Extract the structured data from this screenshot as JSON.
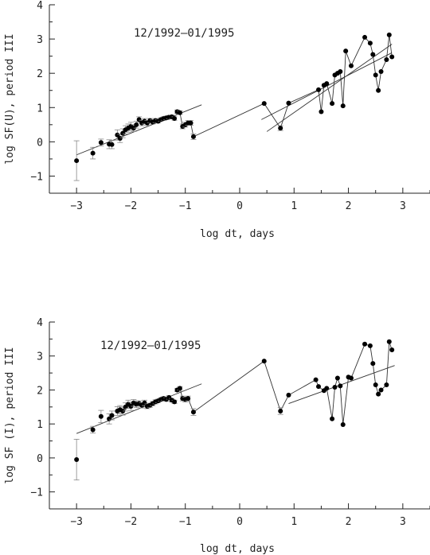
{
  "chart_data": [
    {
      "type": "scatter",
      "annotation": "12/1992–01/1995",
      "xlabel": "log dt, days",
      "ylabel": "log SF(U), period III",
      "xlim": [
        -3.5,
        3.5
      ],
      "ylim": [
        -1.5,
        4.0
      ],
      "xticks": [
        -3,
        -2,
        -1,
        0,
        1,
        2,
        3
      ],
      "yticks": [
        -1,
        0,
        1,
        2,
        3,
        4
      ],
      "points": [
        [
          -3.0,
          -0.55,
          0.58
        ],
        [
          -2.7,
          -0.33,
          0.17
        ],
        [
          -2.55,
          -0.02,
          0.1
        ],
        [
          -2.4,
          -0.07,
          0.13
        ],
        [
          -2.35,
          -0.08,
          0.12
        ],
        [
          -2.25,
          0.2,
          0.15
        ],
        [
          -2.2,
          0.1,
          0.12
        ],
        [
          -2.15,
          0.25,
          0.13
        ],
        [
          -2.1,
          0.35,
          0.12
        ],
        [
          -2.05,
          0.4,
          0.12
        ],
        [
          -2.0,
          0.45,
          0.12
        ],
        [
          -1.95,
          0.4,
          0.1
        ],
        [
          -1.9,
          0.5,
          0.1
        ],
        [
          -1.85,
          0.65,
          0.08
        ],
        [
          -1.8,
          0.55,
          0.08
        ],
        [
          -1.75,
          0.6,
          0.08
        ],
        [
          -1.7,
          0.55,
          0.07
        ],
        [
          -1.65,
          0.62,
          0.06
        ],
        [
          -1.6,
          0.58,
          0.06
        ],
        [
          -1.55,
          0.62,
          0.06
        ],
        [
          -1.5,
          0.6,
          0.05
        ],
        [
          -1.45,
          0.65,
          0.05
        ],
        [
          -1.4,
          0.68,
          0.05
        ],
        [
          -1.35,
          0.7,
          0.05
        ],
        [
          -1.3,
          0.72,
          0.05
        ],
        [
          -1.25,
          0.73,
          0.05
        ],
        [
          -1.2,
          0.68,
          0.05
        ],
        [
          -1.15,
          0.88,
          0.05
        ],
        [
          -1.1,
          0.85,
          0.05
        ],
        [
          -1.05,
          0.45,
          0.07
        ],
        [
          -1.0,
          0.5,
          0.07
        ],
        [
          -0.95,
          0.55,
          0.07
        ],
        [
          -0.9,
          0.55,
          0.07
        ],
        [
          -0.85,
          0.15,
          0.08
        ],
        [
          0.45,
          1.12,
          0
        ],
        [
          0.75,
          0.4,
          0.07
        ],
        [
          0.9,
          1.13,
          0
        ],
        [
          1.45,
          1.52,
          0
        ],
        [
          1.5,
          0.88,
          0
        ],
        [
          1.55,
          1.65,
          0
        ],
        [
          1.6,
          1.7,
          0
        ],
        [
          1.7,
          1.12,
          0
        ],
        [
          1.75,
          1.95,
          0
        ],
        [
          1.8,
          2.0,
          0
        ],
        [
          1.85,
          2.05,
          0
        ],
        [
          1.9,
          1.05,
          0
        ],
        [
          1.95,
          2.65,
          0
        ],
        [
          2.05,
          2.22,
          0
        ],
        [
          2.3,
          3.05,
          0
        ],
        [
          2.4,
          2.88,
          0
        ],
        [
          2.45,
          2.55,
          0
        ],
        [
          2.5,
          1.95,
          0
        ],
        [
          2.55,
          1.5,
          0
        ],
        [
          2.6,
          2.05,
          0
        ],
        [
          2.7,
          2.4,
          0
        ],
        [
          2.75,
          3.12,
          0
        ],
        [
          2.8,
          2.48,
          0
        ]
      ],
      "connect_from_index": 28,
      "fits": [
        [
          [
            -3.0,
            -0.38
          ],
          [
            -0.7,
            1.08
          ]
        ],
        [
          [
            0.4,
            0.65
          ],
          [
            2.8,
            2.6
          ]
        ],
        [
          [
            0.5,
            0.3
          ],
          [
            2.8,
            2.85
          ]
        ]
      ]
    },
    {
      "type": "scatter",
      "annotation": "12/1992–01/1995",
      "xlabel": "log dt, days",
      "ylabel": "log SF (I), period III",
      "xlim": [
        -3.5,
        3.5
      ],
      "ylim": [
        -1.5,
        4.0
      ],
      "xticks": [
        -3,
        -2,
        -1,
        0,
        1,
        2,
        3
      ],
      "yticks": [
        -1,
        0,
        1,
        2,
        3,
        4
      ],
      "points": [
        [
          -3.0,
          -0.05,
          0.6
        ],
        [
          -2.7,
          0.83,
          0.1
        ],
        [
          -2.55,
          1.22,
          0.18
        ],
        [
          -2.4,
          1.15,
          0.15
        ],
        [
          -2.35,
          1.25,
          0.13
        ],
        [
          -2.25,
          1.38,
          0.13
        ],
        [
          -2.2,
          1.42,
          0.12
        ],
        [
          -2.15,
          1.38,
          0.12
        ],
        [
          -2.1,
          1.5,
          0.12
        ],
        [
          -2.05,
          1.58,
          0.12
        ],
        [
          -2.0,
          1.52,
          0.12
        ],
        [
          -1.95,
          1.62,
          0.1
        ],
        [
          -1.9,
          1.58,
          0.1
        ],
        [
          -1.85,
          1.6,
          0.08
        ],
        [
          -1.8,
          1.55,
          0.08
        ],
        [
          -1.75,
          1.62,
          0.08
        ],
        [
          -1.7,
          1.52,
          0.07
        ],
        [
          -1.65,
          1.55,
          0.06
        ],
        [
          -1.6,
          1.6,
          0.06
        ],
        [
          -1.55,
          1.65,
          0.06
        ],
        [
          -1.5,
          1.68,
          0.05
        ],
        [
          -1.45,
          1.72,
          0.05
        ],
        [
          -1.4,
          1.75,
          0.05
        ],
        [
          -1.35,
          1.72,
          0.05
        ],
        [
          -1.3,
          1.78,
          0.05
        ],
        [
          -1.25,
          1.7,
          0.05
        ],
        [
          -1.2,
          1.65,
          0.05
        ],
        [
          -1.15,
          2.0,
          0.05
        ],
        [
          -1.1,
          2.05,
          0.05
        ],
        [
          -1.05,
          1.75,
          0.07
        ],
        [
          -1.0,
          1.72,
          0.07
        ],
        [
          -0.95,
          1.75,
          0.07
        ],
        [
          -0.85,
          1.35,
          0.1
        ],
        [
          0.45,
          2.85,
          0
        ],
        [
          0.75,
          1.38,
          0.1
        ],
        [
          0.9,
          1.85,
          0
        ],
        [
          1.4,
          2.3,
          0
        ],
        [
          1.45,
          2.1,
          0
        ],
        [
          1.55,
          1.98,
          0
        ],
        [
          1.6,
          2.05,
          0
        ],
        [
          1.7,
          1.15,
          0
        ],
        [
          1.75,
          2.08,
          0
        ],
        [
          1.8,
          2.35,
          0
        ],
        [
          1.85,
          2.12,
          0
        ],
        [
          1.9,
          0.98,
          0
        ],
        [
          2.0,
          2.38,
          0
        ],
        [
          2.05,
          2.35,
          0
        ],
        [
          2.3,
          3.35,
          0
        ],
        [
          2.4,
          3.3,
          0
        ],
        [
          2.45,
          2.78,
          0
        ],
        [
          2.5,
          2.15,
          0
        ],
        [
          2.55,
          1.88,
          0
        ],
        [
          2.6,
          2.0,
          0
        ],
        [
          2.7,
          2.15,
          0
        ],
        [
          2.75,
          3.42,
          0
        ],
        [
          2.8,
          3.18,
          0
        ]
      ],
      "connect_from_index": 28,
      "fits": [
        [
          [
            -3.0,
            0.72
          ],
          [
            -0.7,
            2.18
          ]
        ],
        [
          [
            0.9,
            1.6
          ],
          [
            2.85,
            2.72
          ]
        ]
      ]
    }
  ]
}
